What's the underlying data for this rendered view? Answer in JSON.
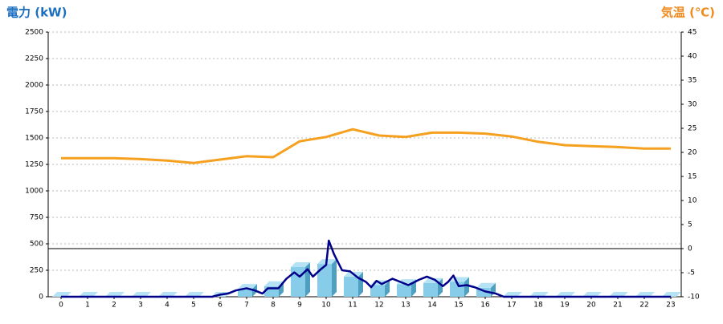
{
  "chart_data": {
    "type": "bar",
    "y_title": "電力 (kW)",
    "y2_title": "気温 (℃)",
    "categories": [
      "0",
      "1",
      "2",
      "3",
      "4",
      "5",
      "6",
      "7",
      "8",
      "9",
      "10",
      "11",
      "12",
      "13",
      "14",
      "15",
      "16",
      "17",
      "18",
      "19",
      "20",
      "21",
      "22",
      "23"
    ],
    "ylim": [
      0,
      2500
    ],
    "yticks": [
      0,
      250,
      500,
      750,
      1000,
      1250,
      1500,
      1750,
      2000,
      2250,
      2500
    ],
    "y2lim": [
      -10,
      45
    ],
    "y2ticks": [
      -10,
      -5,
      0,
      5,
      10,
      15,
      20,
      25,
      30,
      35,
      40,
      45
    ],
    "grid": true,
    "series": [
      {
        "type": "bar",
        "color": "#87cdea",
        "values": [
          0,
          0,
          0,
          0,
          0,
          0,
          0,
          75,
          100,
          280,
          310,
          190,
          110,
          120,
          130,
          140,
          85,
          0,
          0,
          0,
          0,
          0,
          0,
          0
        ]
      },
      {
        "type": "line",
        "color": "#00008b",
        "x": [
          0,
          5,
          5.7,
          6,
          6.3,
          6.6,
          7,
          7.3,
          7.6,
          7.8,
          8.2,
          8.5,
          8.8,
          9,
          9.3,
          9.5,
          9.8,
          10,
          10.1,
          10.3,
          10.6,
          10.9,
          11.2,
          11.5,
          11.7,
          11.9,
          12.1,
          12.5,
          12.8,
          13.1,
          13.5,
          13.8,
          14.1,
          14.4,
          14.6,
          14.8,
          15,
          15.3,
          15.6,
          15.8,
          16,
          16.4,
          16.7,
          17,
          23
        ],
        "values": [
          0,
          0,
          0,
          20,
          30,
          60,
          80,
          60,
          30,
          80,
          80,
          170,
          230,
          190,
          260,
          190,
          260,
          300,
          530,
          400,
          250,
          240,
          180,
          140,
          90,
          150,
          120,
          170,
          140,
          110,
          160,
          190,
          160,
          100,
          140,
          200,
          100,
          110,
          90,
          70,
          50,
          30,
          0,
          0,
          0
        ]
      },
      {
        "type": "line",
        "axis": "y2",
        "color": "#f5a01e",
        "values": [
          18.8,
          18.8,
          18.8,
          18.6,
          18.3,
          17.8,
          18.5,
          19.2,
          19.0,
          22.3,
          23.2,
          24.8,
          23.5,
          23.2,
          24.1,
          24.1,
          23.9,
          23.3,
          22.2,
          21.5,
          21.3,
          21.1,
          20.8,
          20.8
        ]
      }
    ]
  }
}
